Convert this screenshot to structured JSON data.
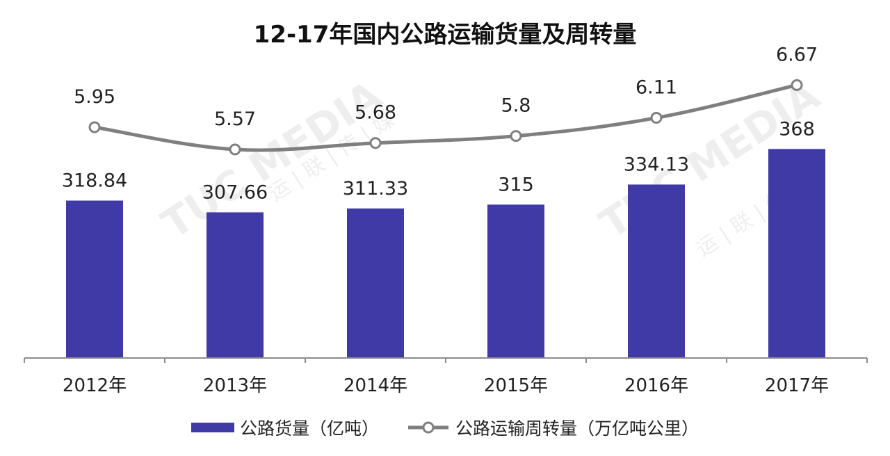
{
  "chart_data": {
    "type": "bar",
    "title": "12-17年国内公路运输货量及周转量",
    "categories": [
      "2012年",
      "2013年",
      "2014年",
      "2015年",
      "2016年",
      "2017年"
    ],
    "series": [
      {
        "name": "公路货量（亿吨）",
        "type": "bar",
        "values": [
          318.84,
          307.66,
          311.33,
          315,
          334.13,
          368
        ],
        "labels": [
          "318.84",
          "307.66",
          "311.33",
          "315",
          "334.13",
          "368"
        ],
        "color": "#3f3aa6"
      },
      {
        "name": "公路运输周转量（万亿吨公里）",
        "type": "line",
        "values": [
          5.95,
          5.57,
          5.68,
          5.8,
          6.11,
          6.67
        ],
        "labels": [
          "5.95",
          "5.57",
          "5.68",
          "5.8",
          "6.11",
          "6.67"
        ],
        "color": "#7f7f7f"
      }
    ],
    "legend_position": "bottom",
    "grid": false
  },
  "watermark": {
    "text": "TUC MEDIA",
    "subtext": "运 | 联 | 传 | 媒"
  }
}
